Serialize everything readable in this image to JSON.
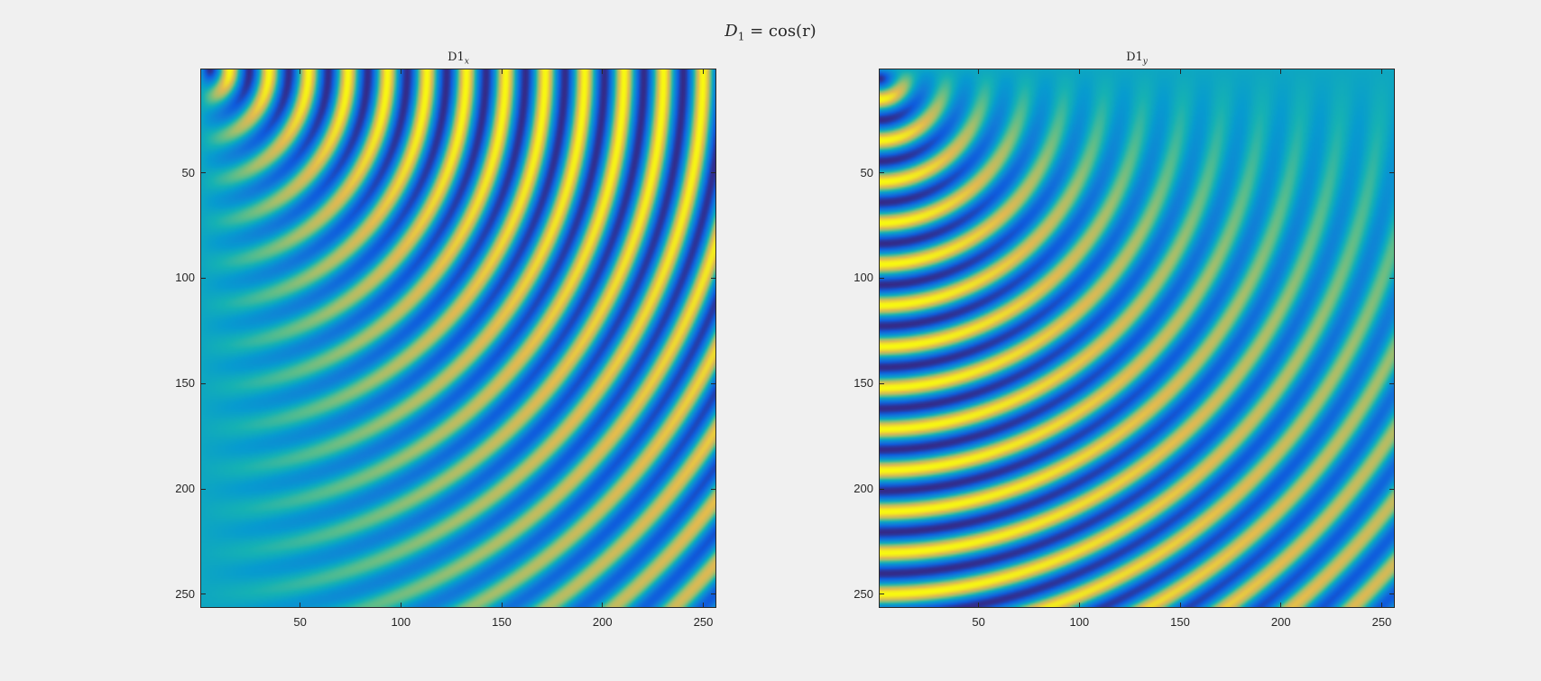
{
  "figure": {
    "suptitle": {
      "lhs_symbol": "D",
      "lhs_sub": "1",
      "rhs": "= cos(r)"
    }
  },
  "chart_data": [
    {
      "type": "heatmap",
      "title": "D1",
      "title_sub": "x",
      "function": "d/dx cos(r)",
      "colormap": "parula",
      "x_range": [
        1,
        256
      ],
      "y_range": [
        1,
        256
      ],
      "y_reversed": true,
      "x_ticks": [
        50,
        100,
        150,
        200,
        250
      ],
      "y_ticks": [
        50,
        100,
        150,
        200,
        250
      ],
      "x_tick_labels": [
        "50",
        "100",
        "150",
        "200",
        "250"
      ],
      "y_tick_labels": [
        "50",
        "100",
        "150",
        "200",
        "250"
      ]
    },
    {
      "type": "heatmap",
      "title": "D1",
      "title_sub": "y",
      "function": "d/dy cos(r)",
      "colormap": "parula",
      "x_range": [
        1,
        256
      ],
      "y_range": [
        1,
        256
      ],
      "y_reversed": true,
      "x_ticks": [
        50,
        100,
        150,
        200,
        250
      ],
      "y_ticks": [
        50,
        100,
        150,
        200,
        250
      ],
      "x_tick_labels": [
        "50",
        "100",
        "150",
        "200",
        "250"
      ],
      "y_tick_labels": [
        "50",
        "100",
        "150",
        "200",
        "250"
      ]
    }
  ]
}
